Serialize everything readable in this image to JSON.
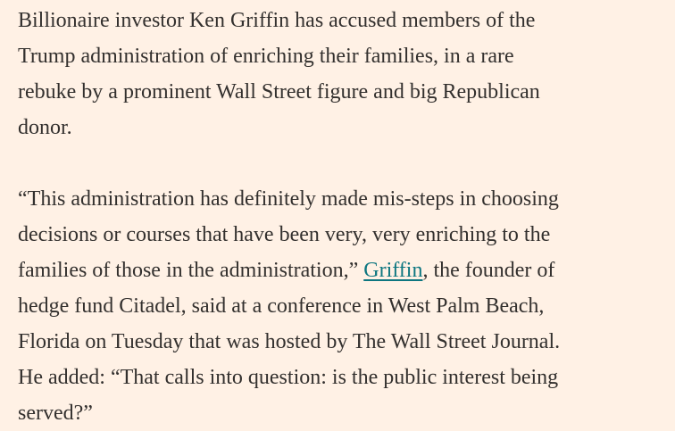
{
  "article": {
    "paragraph1": {
      "lines": [
        "Billionaire investor Ken Griffin has accused members of the",
        "Trump administration of enriching their families, in a rare",
        "rebuke by a prominent Wall Street figure and big Republican",
        "donor."
      ]
    },
    "paragraph2": {
      "lines": [
        "“This administration has definitely made mis-steps in choosing",
        "decisions or courses that have been very, very enriching to the"
      ],
      "line3_before_link": "families of those in the administration,” ",
      "link_text": "Griffin",
      "line3_after_link": ", the founder of",
      "lines_after": [
        "hedge fund Citadel, said at a conference in West Palm Beach,",
        "Florida on Tuesday that was hosted by The Wall Street Journal.",
        "He added: “That calls into question: is the public interest being",
        "served?”"
      ]
    }
  },
  "colors": {
    "background": "#fff1e5",
    "text": "#33302e",
    "link": "#0d7680"
  }
}
